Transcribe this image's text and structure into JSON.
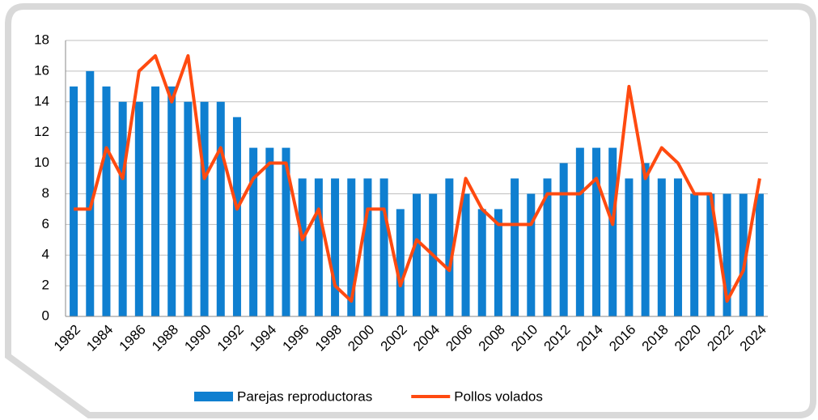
{
  "chart_data": {
    "type": "bar_line",
    "categories": [
      "1982",
      null,
      "1984",
      null,
      "1986",
      null,
      "1988",
      null,
      "1990",
      null,
      "1992",
      null,
      "1994",
      null,
      "1996",
      null,
      "1998",
      null,
      "2000",
      null,
      "2002",
      null,
      "2004",
      null,
      "2006",
      null,
      "2008",
      null,
      "2010",
      null,
      "2012",
      null,
      "2014",
      null,
      "2016",
      null,
      "2018",
      null,
      "2020",
      null,
      "2022",
      null,
      "2024"
    ],
    "series": [
      {
        "name": "Parejas reproductoras",
        "type": "bar",
        "color": "#0f7fd0",
        "values": [
          15,
          16,
          15,
          14,
          14,
          15,
          15,
          14,
          14,
          14,
          13,
          11,
          11,
          11,
          9,
          9,
          9,
          9,
          9,
          9,
          7,
          8,
          8,
          9,
          8,
          7,
          7,
          9,
          8,
          9,
          10,
          11,
          11,
          11,
          9,
          10,
          9,
          9,
          8,
          8,
          8,
          8,
          8
        ]
      },
      {
        "name": "Pollos volados",
        "type": "line",
        "color": "#ff4a10",
        "values": [
          7,
          7,
          11,
          9,
          16,
          17,
          14,
          17,
          9,
          11,
          7,
          9,
          10,
          10,
          5,
          7,
          2,
          1,
          7,
          7,
          2,
          5,
          4,
          3,
          9,
          7,
          6,
          6,
          6,
          8,
          8,
          8,
          9,
          6,
          15,
          9,
          11,
          10,
          8,
          8,
          1,
          3,
          9
        ]
      }
    ],
    "ylim": [
      0,
      18
    ],
    "yticks": [
      0,
      2,
      4,
      6,
      8,
      10,
      12,
      14,
      16,
      18
    ],
    "grid": true,
    "legend": "bottom"
  }
}
